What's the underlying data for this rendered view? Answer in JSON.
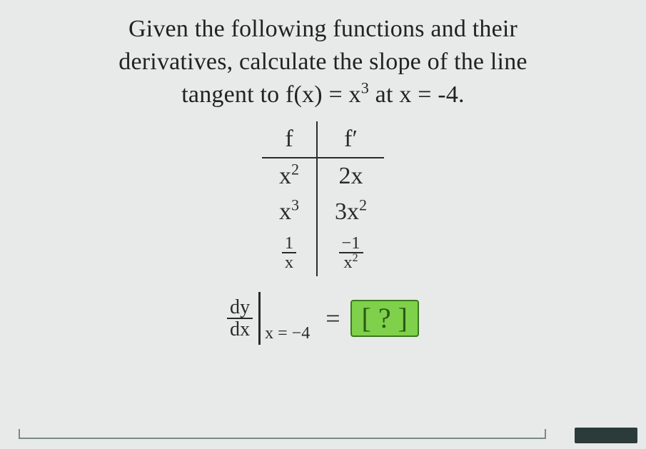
{
  "problem": {
    "line1": "Given the following functions and their",
    "line2": "derivatives, calculate the slope of the line",
    "line3_prefix": "tangent to f(x) = x",
    "line3_exp": "3",
    "line3_suffix": " at x = -4."
  },
  "table": {
    "header_f": "f",
    "header_fprime": "f′",
    "rows": [
      {
        "f_base": "x",
        "f_exp": "2",
        "fp_coeff": "2x",
        "fp_exp": ""
      },
      {
        "f_base": "x",
        "f_exp": "3",
        "fp_coeff": "3x",
        "fp_exp": "2"
      }
    ],
    "frac_row": {
      "f_num": "1",
      "f_den": "x",
      "fp_num": "−1",
      "fp_den_base": "x",
      "fp_den_exp": "2"
    }
  },
  "equation": {
    "dy": "dy",
    "dx": "dx",
    "eval_at": "x = −4",
    "equals": "=",
    "answer_open": "[ ",
    "answer_q": "?",
    "answer_close": " ]"
  },
  "colors": {
    "background": "#e8eae9",
    "text": "#2a2a2a",
    "answer_bg": "#7fd04a",
    "answer_border": "#3a7a1d",
    "answer_text": "#2a5a15"
  }
}
